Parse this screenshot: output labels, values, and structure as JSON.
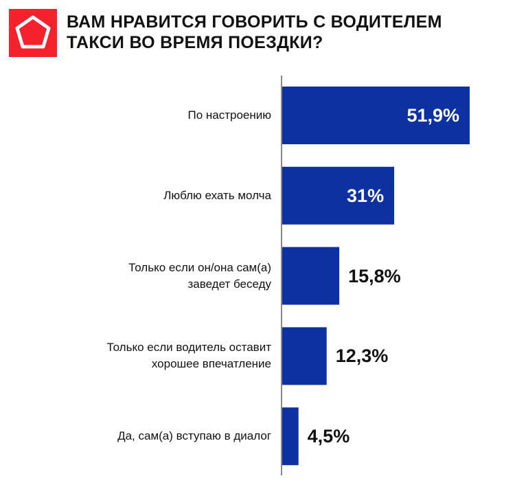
{
  "title": {
    "line1": "ВАМ НРАВИТСЯ ГОВОРИТЬ С ВОДИТЕЛЕМ",
    "line2": "ТАКСИ ВО ВРЕМЯ ПОЕЗДКИ?"
  },
  "colors": {
    "bar": "#0d31a0",
    "logo": "#f5222d",
    "axis": "#888888"
  },
  "chart_data": {
    "type": "bar",
    "orientation": "horizontal",
    "title": "ВАМ НРАВИТСЯ ГОВОРИТЬ С ВОДИТЕЛЕМ ТАКСИ ВО ВРЕМЯ ПОЕЗДКИ?",
    "categories": [
      [
        "По настроению"
      ],
      [
        "Люблю ехать молча"
      ],
      [
        "Только если он/она сам(а)",
        "заведет беседу"
      ],
      [
        "Только если водитель оставит",
        "хорошее впечатление"
      ],
      [
        "Да, сам(а) вступаю в диалог"
      ]
    ],
    "values": [
      51.9,
      31,
      15.8,
      12.3,
      4.5
    ],
    "value_labels": [
      "51,9%",
      "31%",
      "15,8%",
      "12,3%",
      "4,5%"
    ],
    "xlim": [
      0,
      52
    ],
    "grid": false
  }
}
